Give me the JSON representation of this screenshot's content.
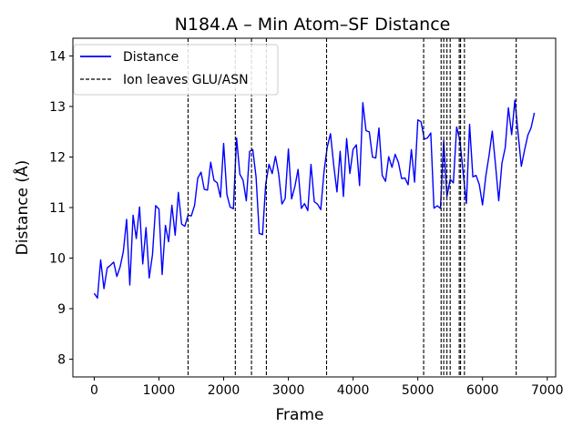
{
  "chart_data": {
    "type": "line",
    "title": "N184.A – Min Atom–SF Distance",
    "xlabel": "Frame",
    "ylabel": "Distance (Å)",
    "xlim": [
      -330,
      7130
    ],
    "ylim": [
      7.65,
      14.35
    ],
    "xticks": [
      0,
      1000,
      2000,
      3000,
      4000,
      5000,
      6000,
      7000
    ],
    "yticks": [
      8,
      9,
      10,
      11,
      12,
      13,
      14
    ],
    "grid": false,
    "legend_position": "upper left",
    "colors": {
      "series": "#0000ff",
      "events": "#000000"
    },
    "series": [
      {
        "name": "Distance",
        "style": "solid",
        "frame_step": 50,
        "noise_amplitude": 0.75,
        "x": [
          0,
          200,
          400,
          600,
          800,
          1000,
          1200,
          1400,
          1450,
          1600,
          1800,
          2000,
          2200,
          2400,
          2600,
          2800,
          3000,
          3200,
          3400,
          3600,
          3800,
          4000,
          4200,
          4400,
          4600,
          4800,
          5000,
          5200,
          5400,
          5600,
          5800,
          6000,
          6200,
          6400,
          6600,
          6800
        ],
        "y": [
          9.8,
          9.4,
          9.8,
          10.1,
          10.2,
          10.4,
          10.7,
          10.9,
          11.1,
          11.0,
          11.3,
          11.6,
          11.8,
          11.3,
          11.4,
          11.6,
          11.7,
          11.5,
          11.4,
          11.4,
          11.6,
          11.9,
          12.1,
          11.9,
          11.7,
          11.9,
          12.0,
          11.9,
          11.9,
          11.9,
          11.9,
          11.8,
          12.1,
          12.4,
          12.1,
          12.3
        ]
      }
    ],
    "events": {
      "name": "Ion leaves GLU/ASN",
      "style": "dashed",
      "frames": [
        1450,
        2180,
        2430,
        2660,
        3590,
        5090,
        5360,
        5400,
        5450,
        5500,
        5640,
        5660,
        5720,
        6520
      ]
    }
  }
}
